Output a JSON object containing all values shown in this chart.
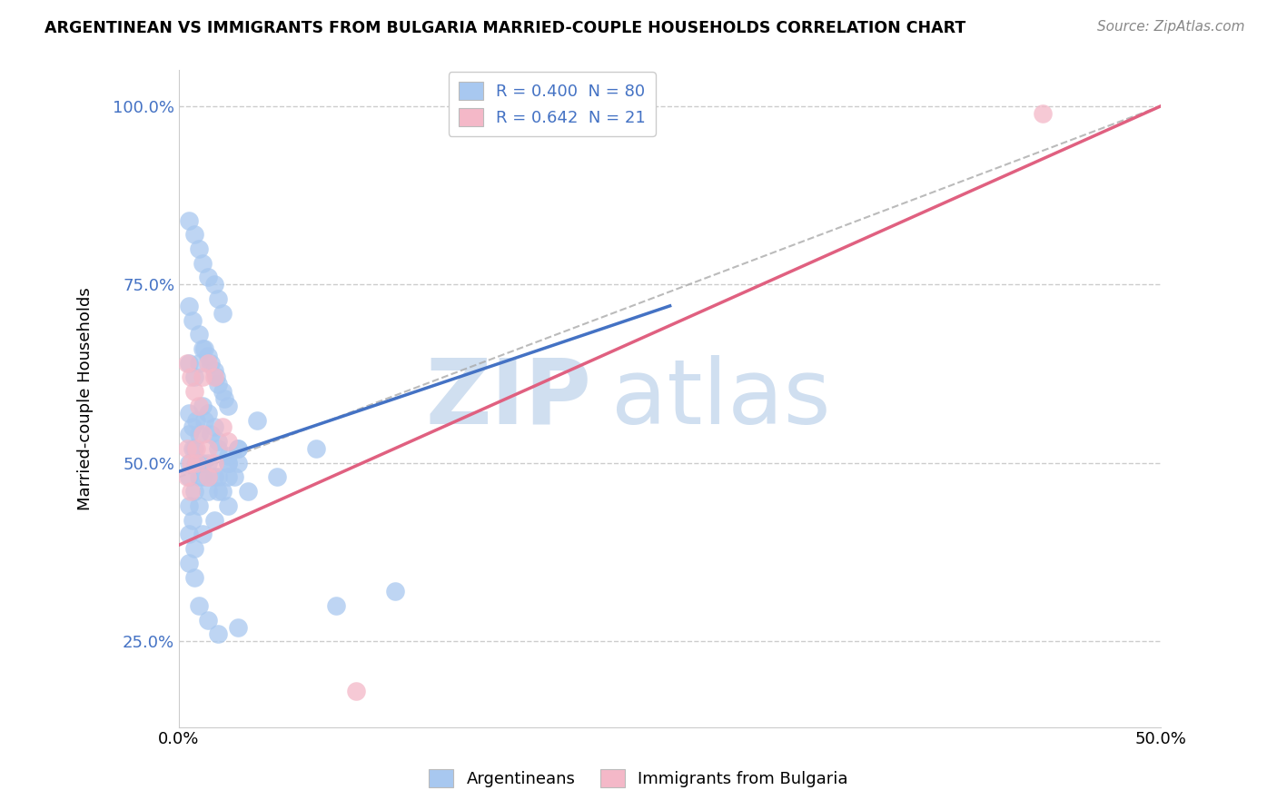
{
  "title": "ARGENTINEAN VS IMMIGRANTS FROM BULGARIA MARRIED-COUPLE HOUSEHOLDS CORRELATION CHART",
  "source": "Source: ZipAtlas.com",
  "ylabel": "Married-couple Households",
  "xlim": [
    0.0,
    0.5
  ],
  "ylim": [
    0.13,
    1.05
  ],
  "yticks": [
    0.25,
    0.5,
    0.75,
    1.0
  ],
  "ytick_labels": [
    "25.0%",
    "50.0%",
    "75.0%",
    "100.0%"
  ],
  "blue_R": 0.4,
  "blue_N": 80,
  "pink_R": 0.642,
  "pink_N": 21,
  "blue_color": "#a8c8f0",
  "blue_line_color": "#4472c4",
  "pink_color": "#f4b8c8",
  "pink_line_color": "#e06080",
  "ref_line_color": "#aaaaaa",
  "watermark_text": "ZIP",
  "watermark_text2": "atlas",
  "watermark_color": "#d0dff0",
  "legend_label_blue": "Argentineans",
  "legend_label_pink": "Immigrants from Bulgaria",
  "blue_scatter_x": [
    0.005,
    0.008,
    0.01,
    0.012,
    0.015,
    0.018,
    0.02,
    0.022,
    0.005,
    0.007,
    0.01,
    0.013,
    0.016,
    0.019,
    0.022,
    0.025,
    0.005,
    0.008,
    0.01,
    0.012,
    0.015,
    0.018,
    0.02,
    0.023,
    0.005,
    0.007,
    0.009,
    0.012,
    0.015,
    0.018,
    0.02,
    0.025,
    0.005,
    0.008,
    0.01,
    0.013,
    0.016,
    0.02,
    0.025,
    0.03,
    0.005,
    0.007,
    0.009,
    0.012,
    0.015,
    0.018,
    0.022,
    0.028,
    0.005,
    0.008,
    0.01,
    0.012,
    0.015,
    0.02,
    0.025,
    0.03,
    0.005,
    0.007,
    0.01,
    0.015,
    0.02,
    0.025,
    0.03,
    0.04,
    0.005,
    0.008,
    0.012,
    0.018,
    0.025,
    0.035,
    0.05,
    0.07,
    0.005,
    0.008,
    0.01,
    0.015,
    0.02,
    0.03,
    0.08,
    0.11
  ],
  "blue_scatter_y": [
    0.84,
    0.82,
    0.8,
    0.78,
    0.76,
    0.75,
    0.73,
    0.71,
    0.72,
    0.7,
    0.68,
    0.66,
    0.64,
    0.62,
    0.6,
    0.58,
    0.64,
    0.62,
    0.64,
    0.66,
    0.65,
    0.63,
    0.61,
    0.59,
    0.57,
    0.55,
    0.56,
    0.58,
    0.57,
    0.55,
    0.53,
    0.51,
    0.54,
    0.52,
    0.54,
    0.56,
    0.54,
    0.52,
    0.5,
    0.52,
    0.5,
    0.52,
    0.5,
    0.48,
    0.5,
    0.48,
    0.46,
    0.48,
    0.48,
    0.46,
    0.48,
    0.5,
    0.48,
    0.46,
    0.48,
    0.5,
    0.44,
    0.42,
    0.44,
    0.46,
    0.48,
    0.5,
    0.52,
    0.56,
    0.4,
    0.38,
    0.4,
    0.42,
    0.44,
    0.46,
    0.48,
    0.52,
    0.36,
    0.34,
    0.3,
    0.28,
    0.26,
    0.27,
    0.3,
    0.32
  ],
  "pink_scatter_x": [
    0.004,
    0.006,
    0.008,
    0.01,
    0.012,
    0.015,
    0.018,
    0.004,
    0.006,
    0.009,
    0.012,
    0.015,
    0.018,
    0.022,
    0.004,
    0.006,
    0.009,
    0.015,
    0.025,
    0.09,
    0.44
  ],
  "pink_scatter_y": [
    0.64,
    0.62,
    0.6,
    0.58,
    0.62,
    0.64,
    0.62,
    0.52,
    0.5,
    0.52,
    0.54,
    0.52,
    0.5,
    0.55,
    0.48,
    0.46,
    0.5,
    0.48,
    0.53,
    0.18,
    0.99
  ],
  "blue_line_x": [
    0.0,
    0.25
  ],
  "blue_line_y": [
    0.488,
    0.72
  ],
  "pink_line_x": [
    0.0,
    0.5
  ],
  "pink_line_y": [
    0.385,
    1.0
  ],
  "ref_line_x": [
    0.0,
    0.5
  ],
  "ref_line_y": [
    0.48,
    1.0
  ]
}
